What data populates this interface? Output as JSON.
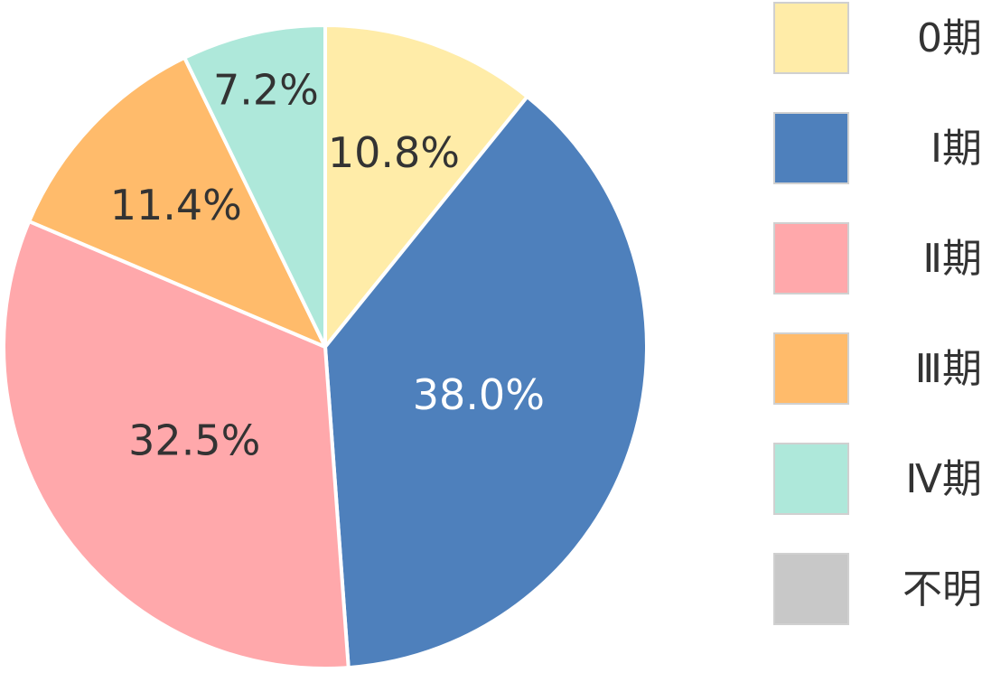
{
  "chart_data": {
    "type": "pie",
    "categories": [
      "0期",
      "Ⅰ期",
      "Ⅱ期",
      "Ⅲ期",
      "Ⅳ期",
      "不明"
    ],
    "values": [
      10.8,
      38.0,
      32.5,
      11.4,
      7.2,
      0
    ],
    "value_labels": [
      "10.8%",
      "38.0%",
      "32.5%",
      "11.4%",
      "7.2%",
      ""
    ],
    "start_angle": "12 o'clock",
    "direction": "clockwise",
    "legend_position": "right",
    "colors": [
      "#FFECA8",
      "#4E80BC",
      "#FFA8AB",
      "#FFBB6B",
      "#AEE8DA",
      "#C8C8C8"
    ],
    "label_colors": [
      "#333333",
      "#ffffff",
      "#333333",
      "#333333",
      "#333333",
      "#333333"
    ],
    "slice_border_color": "#ffffff"
  }
}
